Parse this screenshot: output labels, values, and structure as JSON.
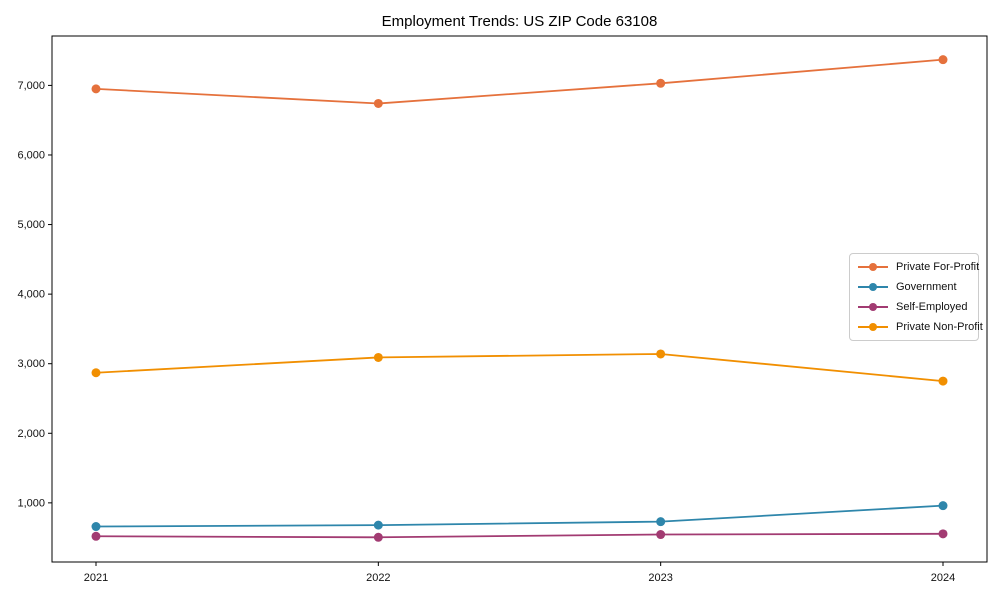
{
  "title": "Employment Trends: US ZIP Code 63108",
  "chart_data": {
    "type": "line",
    "x": [
      2021,
      2022,
      2023,
      2024
    ],
    "x_tick_labels": [
      "2021",
      "2022",
      "2023",
      "2024"
    ],
    "y_tick_values": [
      1000,
      2000,
      3000,
      4000,
      5000,
      6000,
      7000
    ],
    "y_tick_labels": [
      "1,000",
      "2,000",
      "3,000",
      "4,000",
      "5,000",
      "6,000",
      "7,000"
    ],
    "ylim": [
      150,
      7710
    ],
    "grid": false,
    "legend_position": "center-right",
    "series": [
      {
        "name": "Private For-Profit",
        "color": "#E5713C",
        "values": [
          6950,
          6740,
          7030,
          7370
        ]
      },
      {
        "name": "Government",
        "color": "#2E86AB",
        "values": [
          660,
          680,
          730,
          960
        ]
      },
      {
        "name": "Self-Employed",
        "color": "#A23B72",
        "values": [
          520,
          505,
          545,
          555
        ]
      },
      {
        "name": "Private Non-Profit",
        "color": "#F18F01",
        "values": [
          2870,
          3090,
          3140,
          2750
        ]
      }
    ]
  }
}
